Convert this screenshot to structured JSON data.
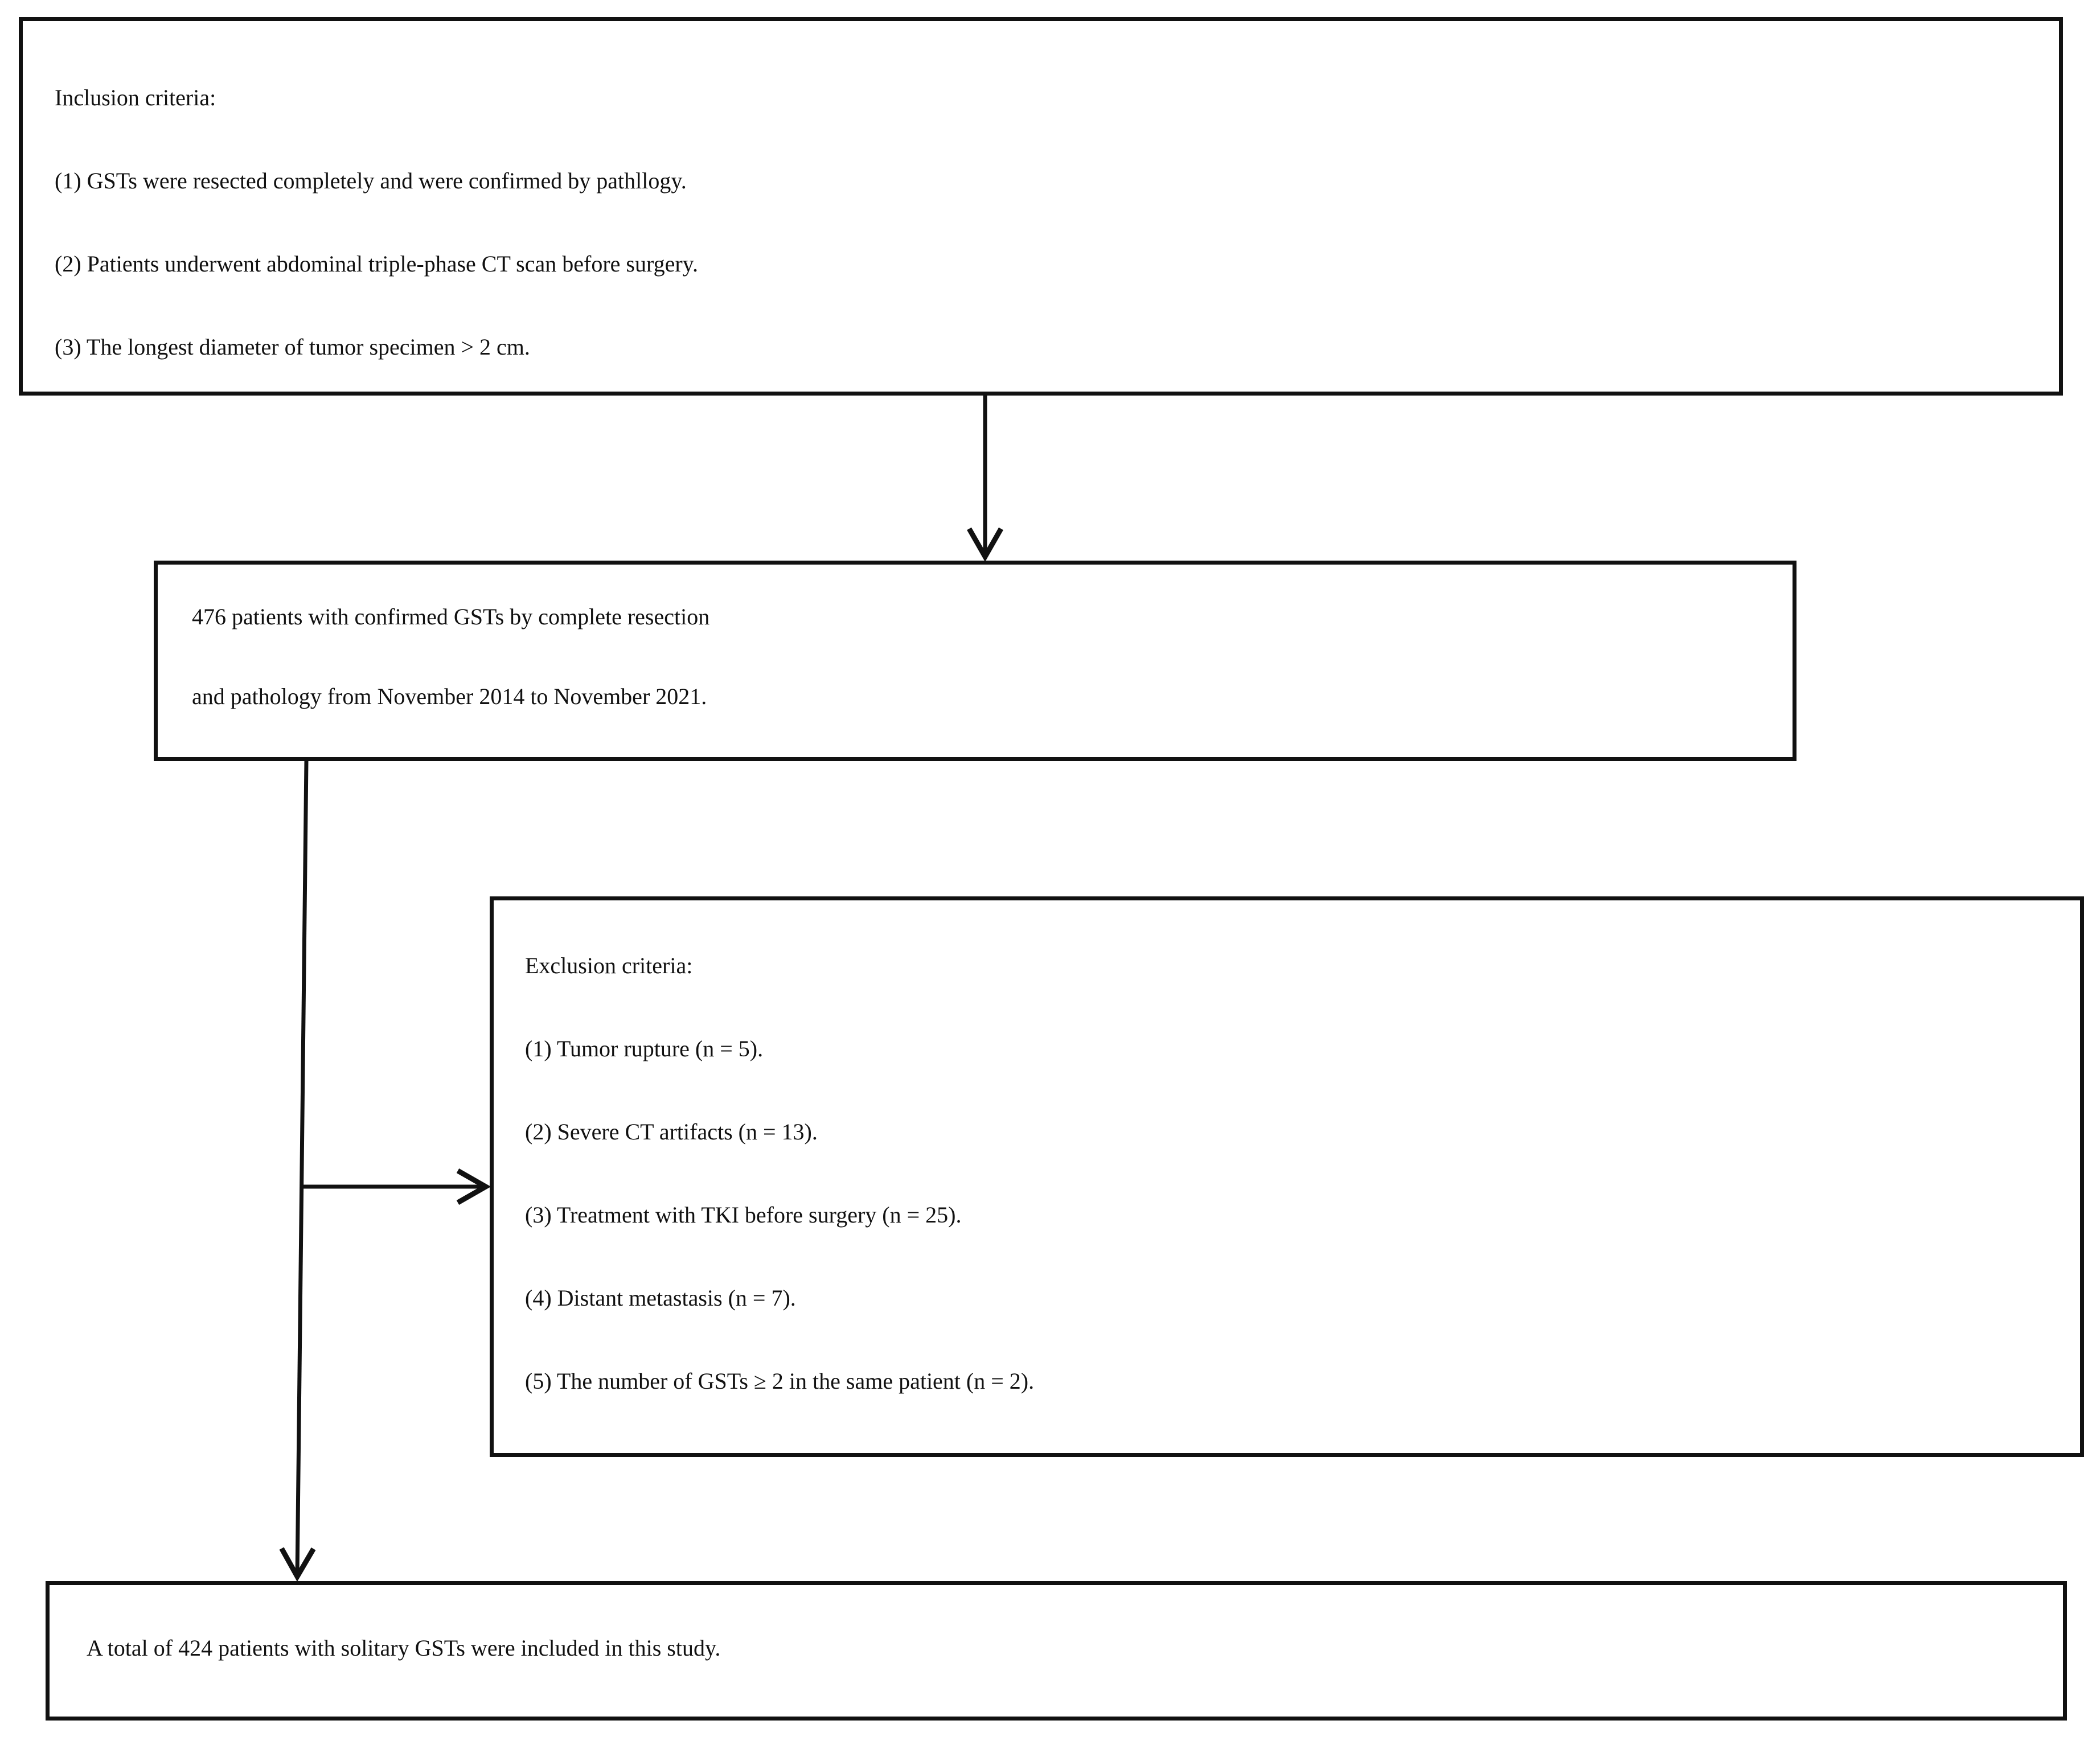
{
  "inclusion": {
    "title": "Inclusion criteria:",
    "items": [
      "(1) GSTs were resected completely and were confirmed by pathllogy.",
      "(2) Patients underwent abdominal triple-phase CT scan before surgery.",
      "(3) The longest diameter of tumor specimen > 2 cm."
    ]
  },
  "population": {
    "lines": [
      "476 patients with confirmed GSTs by complete resection",
      "and pathology from November 2014 to November 2021."
    ]
  },
  "exclusion": {
    "title": "Exclusion criteria:",
    "items": [
      "(1) Tumor rupture (n = 5).",
      "(2) Severe CT artifacts (n = 13).",
      "(3) Treatment with TKI before surgery (n = 25).",
      "(4) Distant metastasis (n = 7).",
      "(5) The number of GSTs ≥ 2 in the same patient (n = 2)."
    ]
  },
  "final": {
    "text": "A total of 424 patients with solitary GSTs were included in this study."
  }
}
